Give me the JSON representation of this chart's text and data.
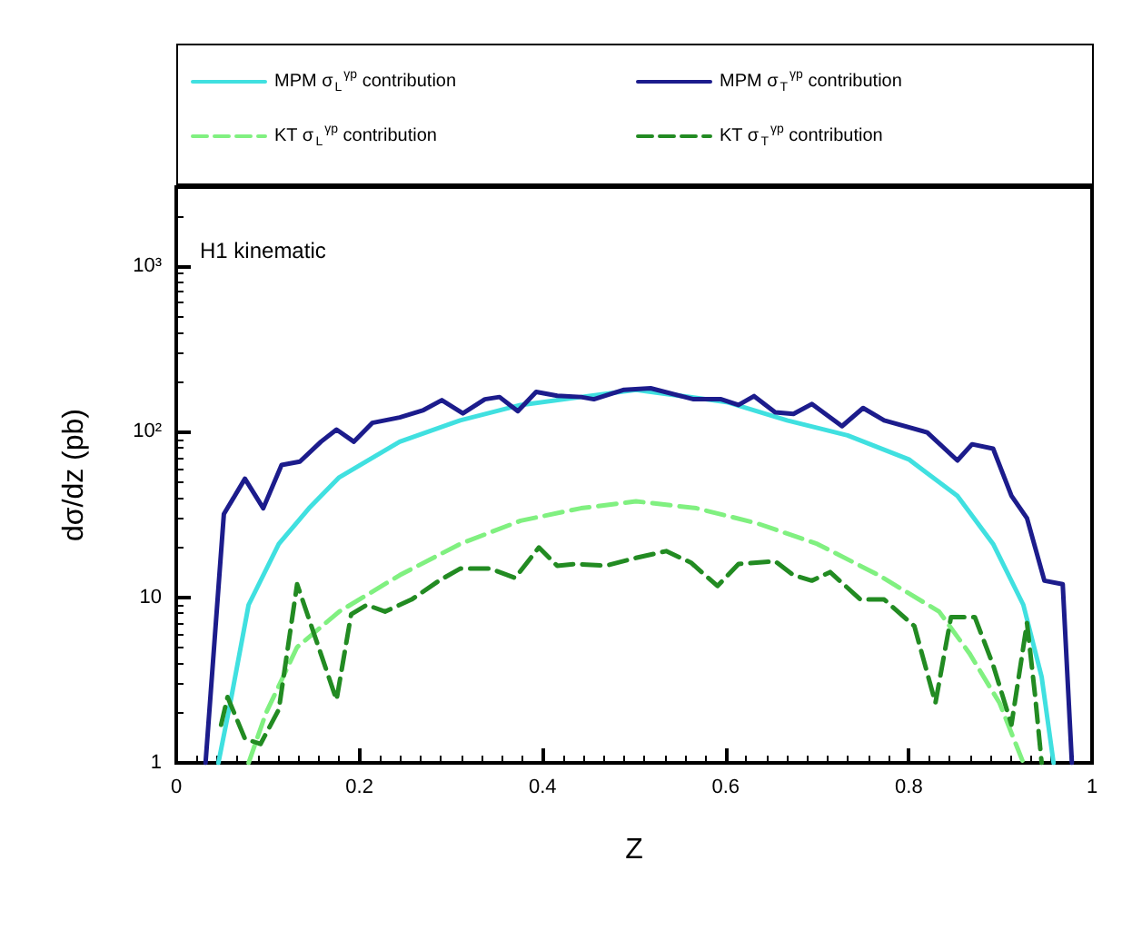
{
  "chart_data": {
    "type": "line",
    "xlabel": "Z",
    "ylabel": "dσ/dz (pb)",
    "annotations": [
      "H1 kinematic"
    ],
    "xlim": [
      0,
      1
    ],
    "xticks": [
      0,
      0.2,
      0.4,
      0.6,
      0.8,
      1
    ],
    "ylim": [
      1,
      3000
    ],
    "yticks": [
      1,
      10,
      {
        "value": 100,
        "label": "10²"
      },
      {
        "value": 1000,
        "label": "10³"
      }
    ],
    "log": "y",
    "grid": false,
    "legend": "top",
    "marker": "none",
    "series": [
      {
        "name": "MPM σ$_{L}$$^{γp}$ contribution",
        "color": "#40e0e0",
        "line_style": "solid",
        "x": [
          0.046,
          0.059,
          0.079,
          0.112,
          0.145,
          0.178,
          0.244,
          0.31,
          0.376,
          0.442,
          0.502,
          0.601,
          0.667,
          0.733,
          0.8,
          0.853,
          0.892,
          0.925,
          0.945,
          0.958
        ],
        "values": [
          1,
          2.3,
          9,
          21,
          34.5,
          53,
          87,
          117,
          145,
          162,
          179,
          151,
          117,
          95,
          68,
          41,
          21,
          9,
          3.3,
          1
        ]
      },
      {
        "name": "MPM σ$_{T}$$^{γp}$ contribution",
        "color": "#1c1c8c",
        "line_style": "solid",
        "x": [
          0.032,
          0.052,
          0.075,
          0.095,
          0.115,
          0.135,
          0.158,
          0.175,
          0.194,
          0.214,
          0.244,
          0.27,
          0.29,
          0.313,
          0.337,
          0.353,
          0.373,
          0.393,
          0.416,
          0.442,
          0.456,
          0.489,
          0.518,
          0.565,
          0.595,
          0.614,
          0.631,
          0.654,
          0.674,
          0.694,
          0.727,
          0.75,
          0.773,
          0.82,
          0.853,
          0.869,
          0.892,
          0.912,
          0.929,
          0.948,
          0.968,
          0.978
        ],
        "values": [
          1,
          31.8,
          52,
          34.5,
          63,
          66,
          87,
          103,
          87,
          113,
          122,
          135,
          155,
          129,
          157,
          162,
          133,
          174,
          165,
          162,
          157,
          179,
          183,
          157,
          157,
          145,
          164,
          131,
          128,
          147,
          108,
          139,
          117,
          99,
          67,
          84,
          79,
          41,
          30,
          12.6,
          12,
          1
        ]
      },
      {
        "name": "KT σ$_{L}$$^{γp}$ contribution",
        "color": "#80f080",
        "line_style": "dashed",
        "x": [
          0.079,
          0.098,
          0.132,
          0.178,
          0.244,
          0.31,
          0.376,
          0.442,
          0.502,
          0.568,
          0.634,
          0.7,
          0.767,
          0.833,
          0.866,
          0.899,
          0.925
        ],
        "values": [
          1,
          2,
          5,
          8.2,
          13.6,
          21,
          29,
          34.5,
          38,
          34.5,
          28,
          21,
          13.6,
          8.2,
          4.6,
          2.3,
          1
        ]
      },
      {
        "name": "KT σ$_{T}$$^{γp}$ contribution",
        "color": "#228b22",
        "line_style": "dashed",
        "x": [
          0.049,
          0.056,
          0.075,
          0.092,
          0.112,
          0.132,
          0.151,
          0.175,
          0.191,
          0.208,
          0.228,
          0.257,
          0.287,
          0.31,
          0.343,
          0.37,
          0.396,
          0.416,
          0.436,
          0.469,
          0.502,
          0.535,
          0.562,
          0.591,
          0.614,
          0.654,
          0.674,
          0.694,
          0.714,
          0.747,
          0.773,
          0.806,
          0.829,
          0.846,
          0.872,
          0.892,
          0.912,
          0.929,
          0.938,
          0.945
        ],
        "values": [
          1.7,
          2.5,
          1.4,
          1.3,
          2.1,
          12,
          5.9,
          2.4,
          7.9,
          9,
          8.2,
          9.7,
          12.6,
          14.9,
          14.9,
          13.1,
          20,
          15.5,
          15.9,
          15.5,
          17.3,
          19,
          16.2,
          11.7,
          15.9,
          16.5,
          13.6,
          12.6,
          14.2,
          9.7,
          9.7,
          6.7,
          2.3,
          7.6,
          7.6,
          3.9,
          1.7,
          7,
          2.5,
          1
        ]
      }
    ]
  }
}
